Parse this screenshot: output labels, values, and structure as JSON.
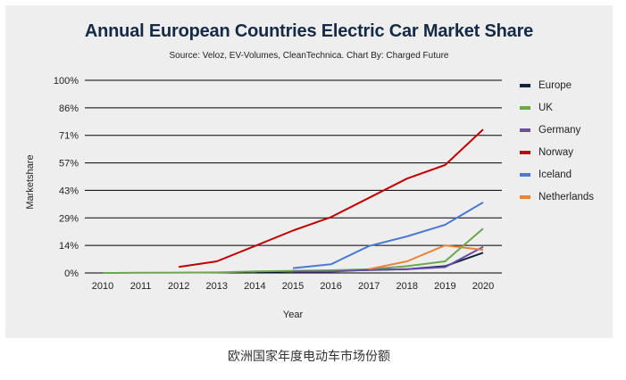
{
  "caption": "欧洲国家年度电动车市场份额",
  "chart_data": {
    "type": "line",
    "title": "Annual European Countries Electric Car Market Share",
    "subtitle": "Source: Veloz, EV-Volumes, CleanTechnica. Chart By: Charged Future",
    "xlabel": "Year",
    "ylabel": "Marketshare",
    "x": [
      "2010",
      "2011",
      "2012",
      "2013",
      "2014",
      "2015",
      "2016",
      "2017",
      "2018",
      "2019",
      "2020"
    ],
    "ylim": [
      0,
      100
    ],
    "yticks": [
      "0%",
      "14%",
      "29%",
      "43%",
      "57%",
      "71%",
      "86%",
      "100%"
    ],
    "ytick_values": [
      0,
      14.29,
      28.57,
      42.86,
      57.14,
      71.43,
      85.71,
      100
    ],
    "grid": true,
    "legend_position": "right",
    "series": [
      {
        "name": "Europe",
        "color": "#14243d",
        "values": [
          null,
          null,
          null,
          null,
          0.5,
          0.8,
          1.0,
          1.5,
          2.0,
          3.5,
          10.5
        ]
      },
      {
        "name": "UK",
        "color": "#6aa84f",
        "values": [
          0.0,
          0.1,
          0.2,
          0.3,
          0.8,
          1.1,
          1.4,
          1.9,
          3.5,
          6.0,
          23.0
        ]
      },
      {
        "name": "Germany",
        "color": "#674ea7",
        "values": [
          null,
          null,
          null,
          null,
          null,
          0.7,
          0.7,
          1.6,
          2.0,
          3.0,
          13.5
        ]
      },
      {
        "name": "Norway",
        "color": "#c00000",
        "values": [
          null,
          null,
          3.1,
          6.0,
          14.0,
          22.0,
          29.0,
          39.0,
          49.0,
          56.0,
          74.5
        ]
      },
      {
        "name": "Iceland",
        "color": "#4a7bd0",
        "values": [
          null,
          null,
          null,
          null,
          null,
          2.5,
          4.5,
          14.0,
          19.0,
          25.0,
          36.6
        ]
      },
      {
        "name": "Netherlands",
        "color": "#e8833a",
        "values": [
          null,
          null,
          null,
          null,
          null,
          null,
          null,
          2.0,
          6.0,
          14.3,
          12.0
        ]
      }
    ]
  }
}
